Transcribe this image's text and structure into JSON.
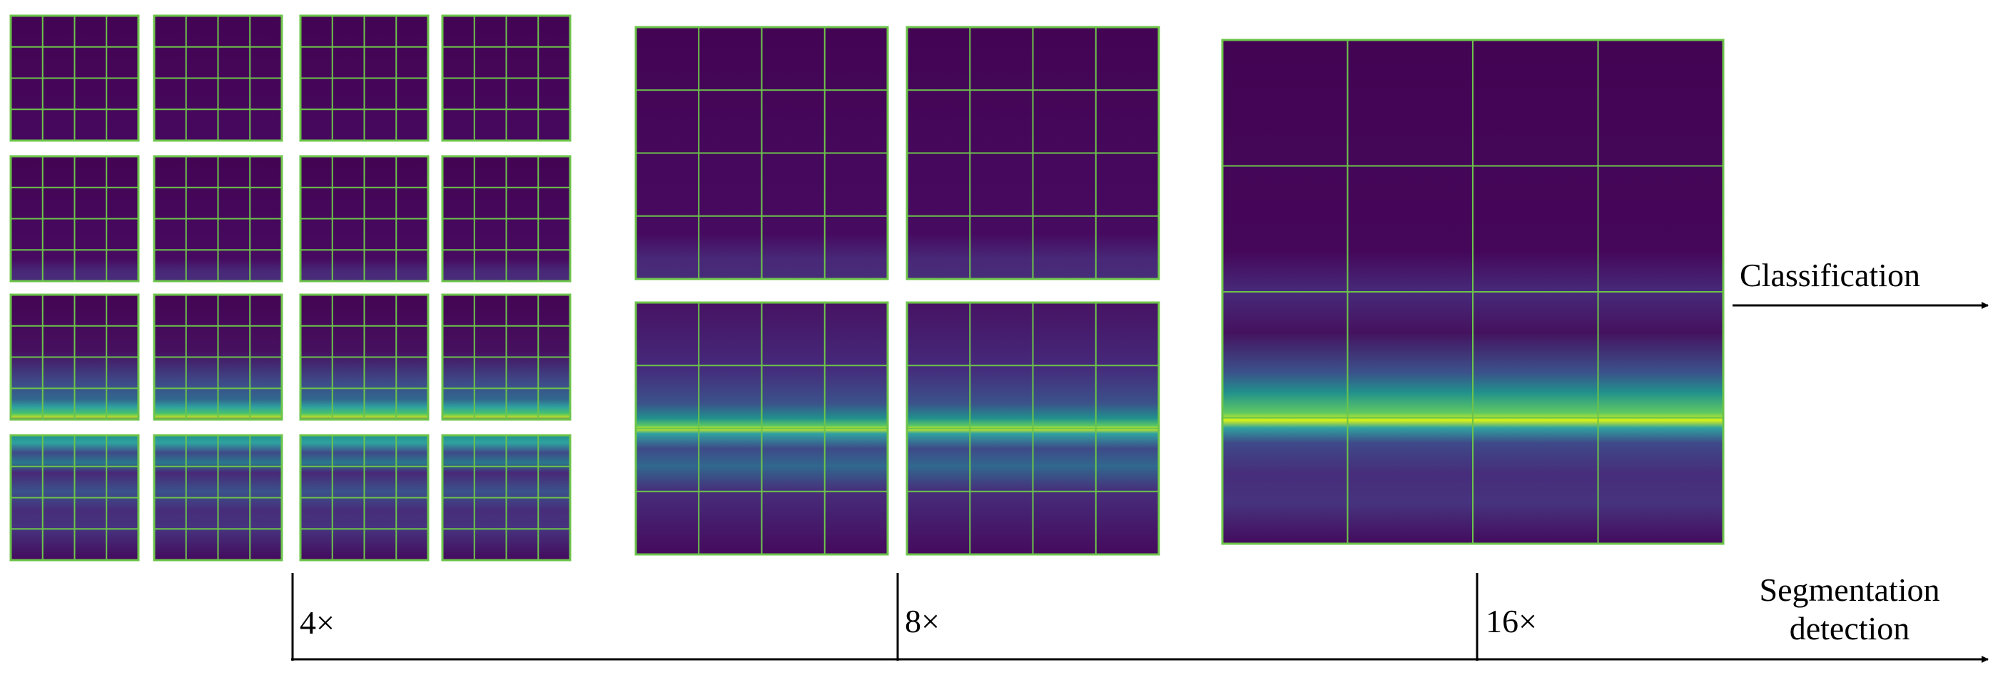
{
  "labels": {
    "classification": "Classification",
    "segmentation_line1": "Segmentation",
    "segmentation_line2": "detection",
    "scale_4x": "4×",
    "scale_8x": "8×",
    "scale_16x": "16×"
  },
  "colors": {
    "background": "#45055c",
    "grid_border": "#6cc44a",
    "band_teal": "#2fa2a0",
    "band_green": "#45c08a",
    "band_yellow": "#d8f018",
    "axis": "#000000"
  },
  "groups": [
    {
      "name": "4x",
      "rows": 4,
      "cols": 4
    },
    {
      "name": "8x",
      "rows": 2,
      "cols": 2
    },
    {
      "name": "16x",
      "rows": 1,
      "cols": 1
    }
  ]
}
